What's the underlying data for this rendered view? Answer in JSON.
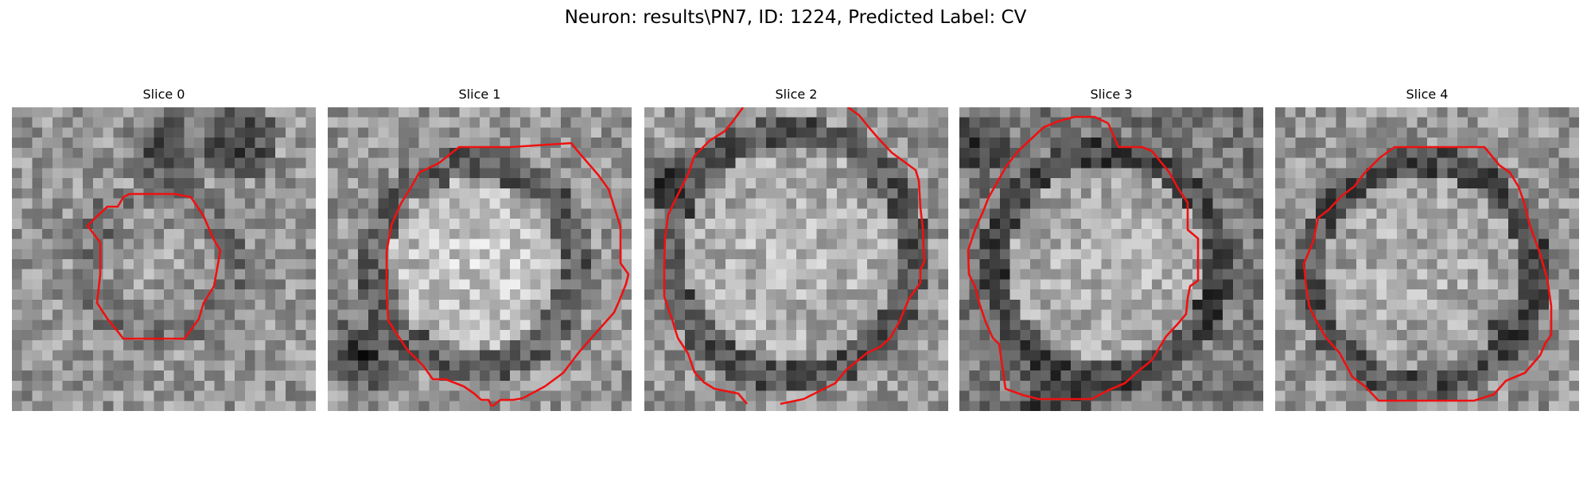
{
  "figure": {
    "title": "Neuron: results\\PN7, ID: 1224, Predicted Label: CV"
  },
  "panels": [
    {
      "title": "Slice 0"
    },
    {
      "title": "Slice 1"
    },
    {
      "title": "Slice 2"
    },
    {
      "title": "Slice 3"
    },
    {
      "title": "Slice 4"
    }
  ],
  "style": {
    "contour_color": "#ee1111",
    "background": "#ffffff"
  }
}
